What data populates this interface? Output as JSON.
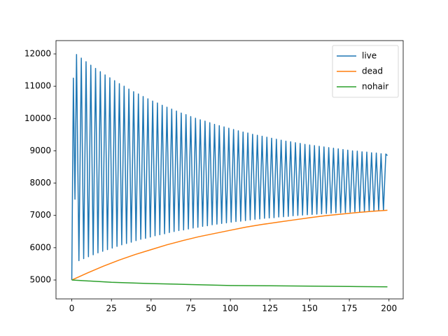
{
  "chart_data": {
    "type": "line",
    "xlim": [
      -9.95,
      208.95
    ],
    "ylim": [
      4415,
      12412
    ],
    "xticks": [
      0,
      25,
      50,
      75,
      100,
      125,
      150,
      175,
      200
    ],
    "yticks": [
      5000,
      6000,
      7000,
      8000,
      9000,
      10000,
      11000,
      12000
    ],
    "legend": "upper right",
    "series": [
      {
        "name": "live",
        "color": "#1f77b4",
        "x": [
          0,
          1,
          2,
          3,
          4.5,
          6,
          7.5,
          9,
          10.5,
          12,
          13.5,
          15,
          16.5,
          18,
          19.5,
          21,
          22.5,
          24,
          25.5,
          27,
          28.5,
          30,
          31.5,
          33,
          34.5,
          36,
          37.5,
          39,
          40.5,
          42,
          43.5,
          45,
          46.5,
          48,
          49.5,
          51,
          52.5,
          54,
          55.5,
          57,
          58.5,
          60,
          61.5,
          63,
          64.5,
          66,
          67.5,
          69,
          70.5,
          72,
          73.5,
          75,
          76.5,
          78,
          79.5,
          81,
          82.5,
          84,
          85.5,
          87,
          88.5,
          90,
          91.5,
          93,
          94.5,
          96,
          97.5,
          99,
          100.5,
          102,
          103.5,
          105,
          106.5,
          108,
          109.5,
          111,
          112.5,
          114,
          115.5,
          117,
          118.5,
          120,
          121.5,
          123,
          124.5,
          126,
          127.5,
          129,
          130.5,
          132,
          133.5,
          135,
          136.5,
          138,
          139.5,
          141,
          142.5,
          144,
          145.5,
          147,
          148.5,
          150,
          151.5,
          153,
          154.5,
          156,
          157.5,
          159,
          160.5,
          162,
          163.5,
          165,
          166.5,
          168,
          169.5,
          171,
          172.5,
          174,
          175.5,
          177,
          178.5,
          180,
          181.5,
          183,
          184.5,
          186,
          187.5,
          189,
          190.5,
          192,
          193.5,
          195,
          196.5,
          198,
          199
        ],
        "values": [
          5000,
          11250,
          7500,
          11980,
          5600,
          11870,
          5660,
          11760,
          5720,
          11650,
          5780,
          11550,
          5840,
          11450,
          5890,
          11350,
          5940,
          11260,
          5990,
          11170,
          6040,
          11080,
          6090,
          11000,
          6130,
          10910,
          6170,
          10830,
          6220,
          10760,
          6260,
          10680,
          6290,
          10610,
          6330,
          10540,
          6370,
          10480,
          6400,
          10410,
          6430,
          10350,
          6470,
          10290,
          6500,
          10230,
          6530,
          10170,
          6550,
          10120,
          6580,
          10060,
          6610,
          10010,
          6630,
          9960,
          6660,
          9920,
          6680,
          9870,
          6710,
          9820,
          6730,
          9780,
          6750,
          9740,
          6770,
          9700,
          6790,
          9660,
          6810,
          9620,
          6820,
          9580,
          6840,
          9550,
          6860,
          9510,
          6880,
          9480,
          6890,
          9450,
          6910,
          9420,
          6920,
          9390,
          6930,
          9360,
          6950,
          9330,
          6960,
          9300,
          6970,
          9280,
          6990,
          9250,
          7000,
          9230,
          7010,
          9200,
          7020,
          9180,
          7030,
          9160,
          7040,
          9140,
          7050,
          9120,
          7060,
          9100,
          7070,
          9080,
          7080,
          9060,
          7080,
          9040,
          7090,
          9020,
          7100,
          9000,
          7110,
          8990,
          7110,
          8970,
          7120,
          8960,
          7130,
          8940,
          7130,
          8930,
          7140,
          8910,
          7150,
          8900,
          8850
        ]
      },
      {
        "name": "dead",
        "color": "#ff7f0e",
        "x": [
          0,
          10,
          20,
          30,
          40,
          50,
          60,
          70,
          80,
          90,
          100,
          110,
          120,
          130,
          140,
          150,
          160,
          170,
          180,
          190,
          199
        ],
        "values": [
          5000,
          5220,
          5430,
          5620,
          5790,
          5940,
          6090,
          6220,
          6340,
          6440,
          6540,
          6640,
          6720,
          6790,
          6860,
          6930,
          6990,
          7040,
          7090,
          7130,
          7160
        ]
      },
      {
        "name": "nohair",
        "color": "#2ca02c",
        "x": [
          0,
          25,
          50,
          75,
          100,
          125,
          150,
          175,
          199
        ],
        "values": [
          5000,
          4930,
          4890,
          4860,
          4830,
          4820,
          4810,
          4800,
          4790
        ]
      }
    ]
  }
}
